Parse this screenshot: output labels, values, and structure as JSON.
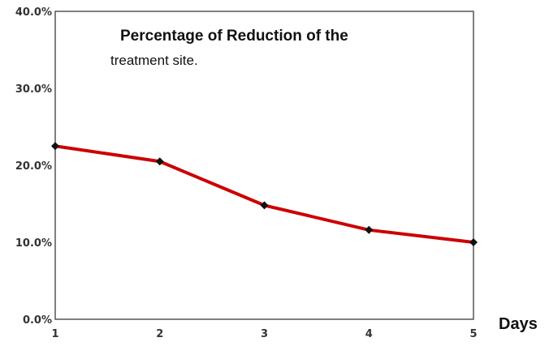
{
  "chart_data": {
    "type": "line",
    "title_line1": "Percentage of Reduction of the",
    "title_line2": "treatment site.",
    "xlabel": "Days",
    "ylabel": "",
    "x": [
      1,
      2,
      3,
      4,
      5
    ],
    "x_tick_labels": [
      "1",
      "2",
      "3",
      "4",
      "5"
    ],
    "y_tick_labels": [
      "0.0%",
      "10.0%",
      "20.0%",
      "30.0%",
      "40.0%"
    ],
    "y_ticks": [
      0,
      10,
      20,
      30,
      40
    ],
    "ylim": [
      0,
      40
    ],
    "xlim": [
      1,
      5
    ],
    "series": [
      {
        "values": [
          22.5,
          20.5,
          14.8,
          11.6,
          10.0
        ],
        "color": "#cc0000"
      }
    ],
    "marker_color": "#111111",
    "grid": false,
    "legend": "none"
  }
}
